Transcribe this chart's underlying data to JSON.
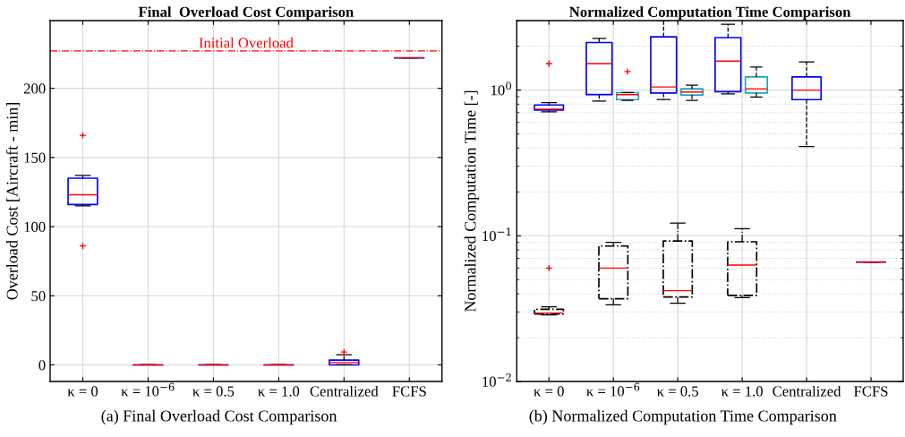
{
  "chart_data": [
    {
      "type": "box",
      "title": "Final  Overload Cost Comparison",
      "ylabel": "Overload Cost [Aircraft - min]",
      "categories": [
        "κ = 0",
        "κ = 10$^{−6}$",
        "κ = 0.5",
        "κ = 1.0",
        "Centralized",
        "FCFS"
      ],
      "ylim": [
        -12,
        249
      ],
      "yticks": [
        0,
        50,
        100,
        150,
        200
      ],
      "grid": true,
      "ref_lines": [
        {
          "axis": "y",
          "value": 227,
          "label": "Initial Overload",
          "color": "#ff0000",
          "line_style": "dashdot"
        }
      ],
      "annotations": [
        "(a) Final Overload Cost Comparison"
      ],
      "series": [
        {
          "color": "#0000ff",
          "line_style": "solid",
          "boxes": [
            {
              "low": 115,
              "q1": 116,
              "median": 123,
              "q3": 135,
              "high": 137,
              "outliers": [
                166,
                86
              ]
            },
            {
              "low": 0,
              "q1": 0,
              "median": 0,
              "q3": 0,
              "high": 0
            },
            {
              "low": 0,
              "q1": 0,
              "median": 0,
              "q3": 0,
              "high": 0
            },
            {
              "low": 0,
              "q1": 0,
              "median": 0,
              "q3": 0,
              "high": 0
            },
            {
              "low": 0,
              "q1": 0,
              "median": 1.7,
              "q3": 3.5,
              "high": 7.4,
              "outliers": [
                9.3
              ]
            },
            {
              "low": 222,
              "q1": 222,
              "median": 222,
              "q3": 222,
              "high": 222
            }
          ]
        }
      ]
    },
    {
      "type": "box",
      "title": "Normalized Computation Time Comparison",
      "ylabel": "Normalized Computation Time [-]",
      "categories": [
        "κ = 0",
        "κ = 10$^{−6}$",
        "κ = 0.5",
        "κ = 1.0",
        "Centralized",
        "FCFS"
      ],
      "log": "y",
      "ylim": [
        0.01,
        3.0
      ],
      "yticks": [
        {
          "value": 0.01,
          "label": "10$^{−2}$"
        },
        {
          "value": 0.1,
          "label": "10$^{−1}$"
        },
        {
          "value": 1,
          "label": "10$^{0}$"
        }
      ],
      "grid": true,
      "annotations": [
        "(b) Normalized Computation Time Comparison"
      ],
      "series": [
        {
          "color": "#0000ff",
          "line_style": "solid",
          "boxes": [
            {
              "low": 0.71,
              "q1": 0.73,
              "median": 0.74,
              "q3": 0.79,
              "high": 0.82,
              "outliers": [
                1.52
              ]
            },
            {
              "low": 0.84,
              "q1": 0.93,
              "median": 1.52,
              "q3": 2.12,
              "high": 2.26
            },
            {
              "low": 0.86,
              "q1": 0.955,
              "median": 1.05,
              "q3": 2.32,
              "high": 3.0
            },
            {
              "low": 0.94,
              "q1": 0.975,
              "median": 1.58,
              "q3": 2.29,
              "high": 2.83
            },
            {
              "low": 0.41,
              "q1": 0.86,
              "median": 1.0,
              "q3": 1.23,
              "high": 1.56
            },
            {
              "low": 0.066,
              "q1": 0.066,
              "median": 0.066,
              "q3": 0.066,
              "high": 0.066
            }
          ]
        },
        {
          "color": "#1ca8b8",
          "line_style": "solid",
          "boxes": [
            null,
            {
              "low": 0.85,
              "q1": 0.86,
              "median": 0.93,
              "q3": 0.96,
              "high": 0.96,
              "outliers": [
                1.34
              ]
            },
            {
              "low": 0.85,
              "q1": 0.925,
              "median": 0.97,
              "q3": 1.02,
              "high": 1.08
            },
            {
              "low": 0.895,
              "q1": 0.955,
              "median": 1.02,
              "q3": 1.23,
              "high": 1.44
            },
            null,
            null
          ]
        },
        {
          "color": "#000000",
          "line_style": "dashdot",
          "boxes": [
            {
              "low": 0.0287,
              "q1": 0.029,
              "median": 0.0295,
              "q3": 0.0313,
              "high": 0.0325,
              "outliers": [
                0.06
              ]
            },
            {
              "low": 0.0336,
              "q1": 0.037,
              "median": 0.06,
              "q3": 0.085,
              "high": 0.09
            },
            {
              "low": 0.0345,
              "q1": 0.038,
              "median": 0.042,
              "q3": 0.092,
              "high": 0.122
            },
            {
              "low": 0.0376,
              "q1": 0.039,
              "median": 0.063,
              "q3": 0.091,
              "high": 0.112
            },
            null,
            null
          ]
        }
      ]
    }
  ]
}
